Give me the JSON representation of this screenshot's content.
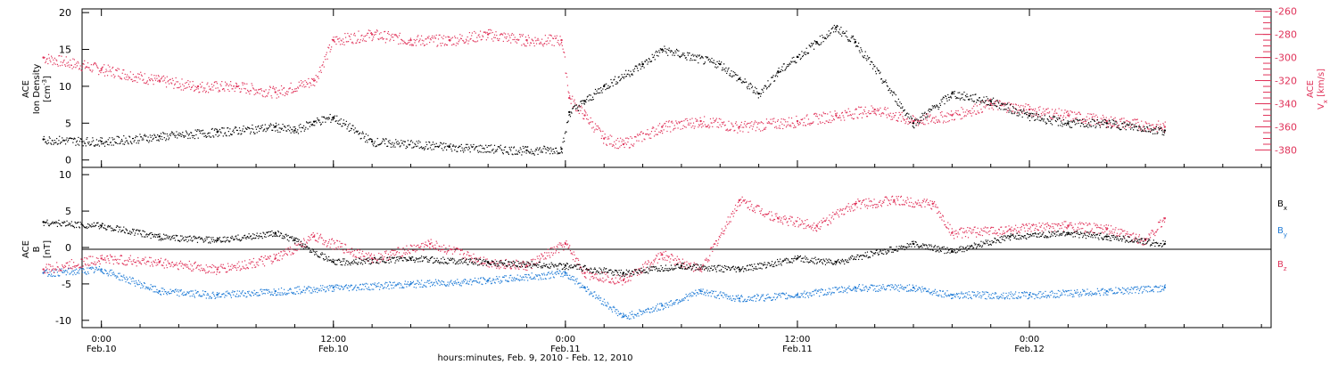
{
  "chart_data": [
    {
      "type": "scatter",
      "panel": "top",
      "title": "",
      "ylabel_left": {
        "mission": "ACE",
        "quantity": "Ion Density",
        "unit": "[cm",
        "unit_exp": "-3",
        "unit_end": "]"
      },
      "ylabel_right": {
        "mission": "ACE",
        "quantity": "V",
        "subscript": "x",
        "unit": "[km/s]"
      },
      "ylim_left": [
        -1,
        20.5
      ],
      "ylim_right": [
        -395,
        -258
      ],
      "yticks_left": [
        0,
        5,
        10,
        15,
        20
      ],
      "yticks_right": [
        -380,
        -360,
        -340,
        -320,
        -300,
        -280,
        -260
      ],
      "series": [
        {
          "name": "Ion Density",
          "axis": "left",
          "color": "#000000",
          "x": [
            -3,
            0,
            3,
            6,
            9,
            10,
            11,
            12,
            14,
            18,
            22,
            23.8,
            24.2,
            25,
            26,
            28,
            29,
            32,
            33,
            34,
            35,
            36,
            37,
            38,
            39,
            42,
            44,
            46,
            48,
            50,
            52,
            55
          ],
          "y": [
            2.8,
            2.5,
            3.2,
            3.8,
            4.5,
            4.0,
            5.2,
            5.8,
            2.5,
            1.8,
            1.3,
            1.5,
            6.5,
            8.0,
            10,
            13,
            15,
            13,
            11,
            9,
            12,
            14,
            16,
            18,
            16,
            5,
            9,
            8,
            6,
            5,
            5,
            4
          ]
        },
        {
          "name": "Vx",
          "axis": "right",
          "color": "#e0335a",
          "x": [
            -3,
            0,
            3,
            5,
            7,
            9,
            11,
            12,
            14,
            16,
            18,
            20,
            22,
            23.8,
            24.2,
            25,
            26,
            27,
            29,
            31,
            33,
            36,
            38,
            40,
            42,
            44,
            46,
            48,
            50,
            52,
            55
          ],
          "y": [
            -300,
            -310,
            -320,
            -325,
            -325,
            -330,
            -320,
            -285,
            -280,
            -285,
            -285,
            -280,
            -285,
            -285,
            -335,
            -350,
            -370,
            -375,
            -360,
            -355,
            -360,
            -355,
            -350,
            -345,
            -355,
            -350,
            -340,
            -345,
            -350,
            -355,
            -360
          ]
        }
      ]
    },
    {
      "type": "scatter",
      "panel": "bottom",
      "title": "",
      "ylabel": {
        "mission": "ACE",
        "quantity": "B",
        "unit": "[nT]"
      },
      "ylim": [
        -11,
        11
      ],
      "yticks": [
        -10,
        -5,
        0,
        5,
        10
      ],
      "legend_placement": "right",
      "series": [
        {
          "name": "B",
          "subscript": "x",
          "color": "#000000",
          "x": [
            -3,
            0,
            3,
            6,
            9,
            10,
            12,
            16,
            20,
            24,
            27,
            30,
            33,
            36,
            38,
            42,
            44,
            47,
            50,
            52,
            55
          ],
          "y": [
            3.5,
            3.0,
            1.5,
            1.0,
            2.0,
            1.0,
            -2.0,
            -1.5,
            -2.0,
            -2.5,
            -3.5,
            -2.5,
            -3.0,
            -1.5,
            -2.0,
            0.5,
            -0.5,
            1.5,
            2.0,
            1.5,
            0.5
          ]
        },
        {
          "name": "B",
          "subscript": "y",
          "color": "#1f7bd6",
          "x": [
            -3,
            0,
            3,
            6,
            9,
            12,
            16,
            20,
            24,
            25,
            27,
            29,
            31,
            33,
            36,
            39,
            42,
            44,
            48,
            52,
            55
          ],
          "y": [
            -3.5,
            -3.0,
            -6.0,
            -6.5,
            -6.0,
            -5.5,
            -5.0,
            -4.5,
            -3.5,
            -5.5,
            -9.5,
            -8.0,
            -6.0,
            -7.0,
            -6.5,
            -5.5,
            -5.5,
            -6.5,
            -6.5,
            -6.0,
            -5.5
          ]
        },
        {
          "name": "B",
          "subscript": "z",
          "color": "#e0335a",
          "x": [
            -3,
            0,
            3,
            6,
            9,
            11,
            14,
            17,
            20,
            22,
            24,
            25,
            27,
            29,
            31,
            33,
            35,
            37,
            39,
            41,
            43,
            44,
            47,
            50,
            52,
            54,
            55
          ],
          "y": [
            -3.0,
            -1.5,
            -2.0,
            -3.0,
            -1.5,
            1.5,
            -1.5,
            0.5,
            -2.0,
            -2.5,
            0.5,
            -3.5,
            -4.5,
            -1.0,
            -3.0,
            6.5,
            4.0,
            3.0,
            6.0,
            6.5,
            6.0,
            2.0,
            2.5,
            3.0,
            2.5,
            1.0,
            4.0
          ]
        }
      ]
    }
  ],
  "x_axis": {
    "ticks": [
      {
        "hour": 0,
        "time": "0:00",
        "date": "Feb.10"
      },
      {
        "hour": 12,
        "time": "12:00",
        "date": "Feb.10"
      },
      {
        "hour": 24,
        "time": "0:00",
        "date": "Feb.11"
      },
      {
        "hour": 36,
        "time": "12:00",
        "date": "Feb.11"
      },
      {
        "hour": 48,
        "time": "0:00",
        "date": "Feb.12"
      }
    ],
    "range_hours": [
      -1,
      60.5
    ],
    "footer": "hours:minutes, Feb. 9, 2010 - Feb. 12, 2010"
  }
}
